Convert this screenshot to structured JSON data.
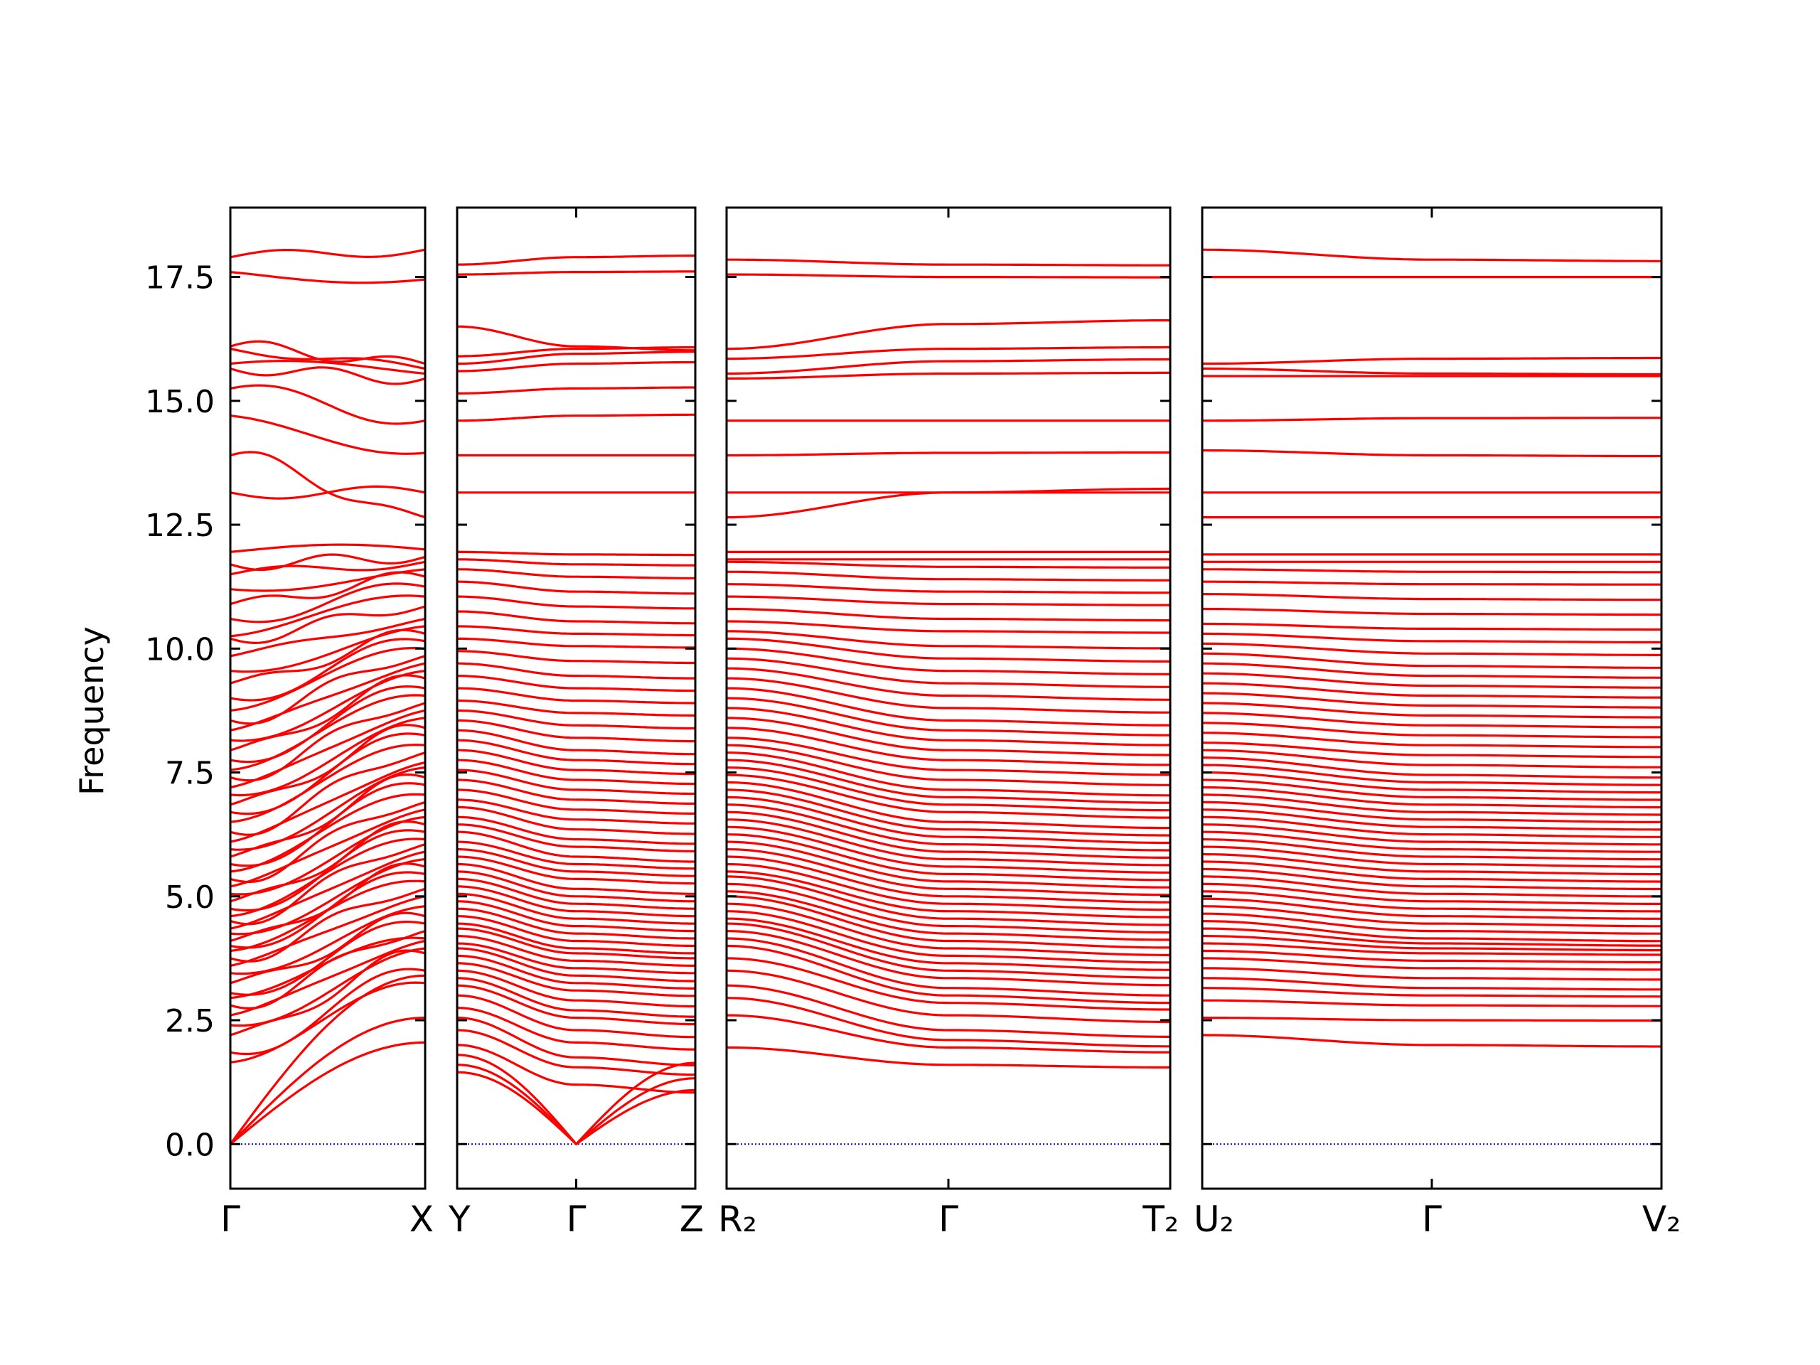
{
  "chart_data": {
    "type": "line",
    "ylabel": "Frequency",
    "ylim": [
      -0.9,
      18.9
    ],
    "yticks": [
      "0.0",
      "2.5",
      "5.0",
      "7.5",
      "10.0",
      "12.5",
      "15.0",
      "17.5"
    ],
    "ytick_values": [
      0,
      2.5,
      5,
      7.5,
      10,
      12.5,
      15,
      17.5
    ],
    "line_color": "#ff0000",
    "zero_line_color": "#0000cc",
    "panels": [
      {
        "labels": [
          "Γ",
          "X"
        ],
        "gamma_index": 0,
        "endpoints": [
          [
            0.0,
            2.05
          ],
          [
            0.0,
            2.55
          ],
          [
            0.0,
            3.4
          ],
          [
            1.65,
            3.25
          ],
          [
            1.85,
            3.5
          ],
          [
            2.2,
            3.85
          ],
          [
            2.4,
            3.95
          ],
          [
            2.6,
            4.1
          ],
          [
            2.8,
            4.3
          ],
          [
            2.95,
            4.15
          ],
          [
            3.05,
            4.45
          ],
          [
            3.25,
            4.6
          ],
          [
            3.45,
            4.8
          ],
          [
            3.6,
            5.0
          ],
          [
            3.75,
            5.15
          ],
          [
            3.9,
            5.3
          ],
          [
            4.0,
            5.45
          ],
          [
            4.1,
            5.6
          ],
          [
            4.25,
            5.75
          ],
          [
            4.35,
            5.9
          ],
          [
            4.5,
            6.05
          ],
          [
            4.6,
            6.15
          ],
          [
            4.75,
            6.3
          ],
          [
            4.9,
            6.45
          ],
          [
            5.05,
            6.6
          ],
          [
            5.2,
            6.75
          ],
          [
            5.35,
            6.9
          ],
          [
            5.5,
            7.05
          ],
          [
            5.65,
            7.25
          ],
          [
            5.8,
            7.4
          ],
          [
            5.95,
            7.6
          ],
          [
            6.1,
            7.7
          ],
          [
            6.3,
            7.9
          ],
          [
            6.5,
            8.05
          ],
          [
            6.7,
            8.25
          ],
          [
            6.85,
            8.4
          ],
          [
            7.05,
            8.6
          ],
          [
            7.2,
            8.75
          ],
          [
            7.4,
            8.9
          ],
          [
            7.55,
            9.05
          ],
          [
            7.75,
            9.2
          ],
          [
            7.95,
            9.4
          ],
          [
            8.15,
            9.55
          ],
          [
            8.35,
            9.7
          ],
          [
            8.55,
            9.85
          ],
          [
            8.75,
            10.0
          ],
          [
            9.0,
            10.15
          ],
          [
            9.3,
            10.3
          ],
          [
            9.55,
            10.45
          ],
          [
            9.85,
            10.6
          ],
          [
            10.2,
            10.85
          ],
          [
            10.25,
            11.05
          ],
          [
            10.6,
            11.25
          ],
          [
            10.9,
            11.45
          ],
          [
            11.2,
            11.6
          ],
          [
            11.5,
            11.75
          ],
          [
            11.7,
            11.85
          ],
          [
            11.95,
            12.0
          ],
          [
            13.15,
            13.15
          ],
          [
            13.9,
            12.65
          ],
          [
            14.7,
            13.95
          ],
          [
            15.25,
            14.6
          ],
          [
            15.65,
            15.45
          ],
          [
            15.75,
            15.55
          ],
          [
            16.05,
            15.65
          ],
          [
            16.1,
            15.75
          ],
          [
            17.6,
            17.45
          ],
          [
            17.9,
            18.05
          ]
        ]
      },
      {
        "labels": [
          "Y",
          "Γ",
          "Z"
        ],
        "gamma_index": 1,
        "endpoints": [
          [
            1.45,
            0.0
          ],
          [
            1.6,
            0.0
          ],
          [
            1.8,
            0.0
          ],
          [
            2.0,
            1.2
          ],
          [
            2.3,
            1.55
          ],
          [
            2.55,
            1.75
          ],
          [
            2.75,
            2.05
          ],
          [
            3.0,
            2.3
          ],
          [
            3.2,
            2.55
          ],
          [
            3.35,
            2.7
          ],
          [
            3.5,
            2.9
          ],
          [
            3.65,
            3.1
          ],
          [
            3.8,
            3.25
          ],
          [
            3.95,
            3.4
          ],
          [
            4.05,
            3.55
          ],
          [
            4.2,
            3.7
          ],
          [
            4.35,
            3.85
          ],
          [
            4.45,
            3.95
          ],
          [
            4.6,
            4.1
          ],
          [
            4.75,
            4.25
          ],
          [
            4.9,
            4.4
          ],
          [
            5.05,
            4.55
          ],
          [
            5.2,
            4.7
          ],
          [
            5.35,
            4.85
          ],
          [
            5.5,
            5.0
          ],
          [
            5.65,
            5.15
          ],
          [
            5.8,
            5.35
          ],
          [
            5.95,
            5.5
          ],
          [
            6.1,
            5.65
          ],
          [
            6.3,
            5.8
          ],
          [
            6.45,
            6.0
          ],
          [
            6.6,
            6.15
          ],
          [
            6.8,
            6.35
          ],
          [
            6.95,
            6.55
          ],
          [
            7.15,
            6.75
          ],
          [
            7.35,
            6.95
          ],
          [
            7.55,
            7.15
          ],
          [
            7.75,
            7.35
          ],
          [
            7.95,
            7.55
          ],
          [
            8.15,
            7.75
          ],
          [
            8.35,
            7.95
          ],
          [
            8.55,
            8.2
          ],
          [
            8.75,
            8.45
          ],
          [
            8.95,
            8.7
          ],
          [
            9.2,
            8.95
          ],
          [
            9.45,
            9.2
          ],
          [
            9.7,
            9.45
          ],
          [
            9.95,
            9.75
          ],
          [
            10.2,
            10.05
          ],
          [
            10.45,
            10.3
          ],
          [
            10.75,
            10.55
          ],
          [
            11.05,
            10.85
          ],
          [
            11.35,
            11.15
          ],
          [
            11.6,
            11.45
          ],
          [
            11.8,
            11.7
          ],
          [
            11.95,
            11.9
          ],
          [
            13.15,
            13.15
          ],
          [
            13.9,
            13.9
          ],
          [
            14.6,
            14.7
          ],
          [
            15.15,
            15.25
          ],
          [
            15.6,
            15.75
          ],
          [
            15.75,
            15.95
          ],
          [
            15.9,
            16.05
          ],
          [
            16.5,
            16.1
          ],
          [
            17.55,
            17.6
          ],
          [
            17.75,
            17.9
          ]
        ]
      },
      {
        "labels": [
          "R₂",
          "Γ",
          "T₂"
        ],
        "gamma_index": 1,
        "endpoints": [
          [
            1.95,
            1.6
          ],
          [
            2.6,
            1.95
          ],
          [
            2.95,
            2.1
          ],
          [
            3.2,
            2.3
          ],
          [
            3.5,
            2.6
          ],
          [
            3.75,
            2.85
          ],
          [
            4.0,
            3.0
          ],
          [
            4.15,
            3.15
          ],
          [
            4.3,
            3.35
          ],
          [
            4.45,
            3.5
          ],
          [
            4.55,
            3.65
          ],
          [
            4.7,
            3.8
          ],
          [
            4.85,
            3.95
          ],
          [
            5.0,
            4.1
          ],
          [
            5.1,
            4.25
          ],
          [
            5.25,
            4.4
          ],
          [
            5.4,
            4.55
          ],
          [
            5.5,
            4.7
          ],
          [
            5.65,
            4.85
          ],
          [
            5.8,
            5.0
          ],
          [
            5.95,
            5.15
          ],
          [
            6.1,
            5.3
          ],
          [
            6.25,
            5.45
          ],
          [
            6.4,
            5.6
          ],
          [
            6.55,
            5.75
          ],
          [
            6.7,
            5.9
          ],
          [
            6.85,
            6.05
          ],
          [
            7.0,
            6.2
          ],
          [
            7.15,
            6.35
          ],
          [
            7.3,
            6.5
          ],
          [
            7.45,
            6.7
          ],
          [
            7.6,
            6.85
          ],
          [
            7.75,
            7.0
          ],
          [
            7.9,
            7.15
          ],
          [
            8.05,
            7.35
          ],
          [
            8.2,
            7.55
          ],
          [
            8.4,
            7.75
          ],
          [
            8.6,
            7.95
          ],
          [
            8.8,
            8.15
          ],
          [
            9.0,
            8.35
          ],
          [
            9.2,
            8.55
          ],
          [
            9.4,
            8.8
          ],
          [
            9.6,
            9.05
          ],
          [
            9.8,
            9.3
          ],
          [
            10.0,
            9.55
          ],
          [
            10.2,
            9.8
          ],
          [
            10.35,
            10.05
          ],
          [
            10.55,
            10.35
          ],
          [
            10.8,
            10.6
          ],
          [
            11.05,
            10.9
          ],
          [
            11.3,
            11.15
          ],
          [
            11.55,
            11.4
          ],
          [
            11.75,
            11.65
          ],
          [
            11.8,
            11.8
          ],
          [
            11.95,
            11.95
          ],
          [
            12.65,
            13.15
          ],
          [
            13.15,
            13.15
          ],
          [
            13.9,
            13.95
          ],
          [
            14.6,
            14.6
          ],
          [
            15.45,
            15.55
          ],
          [
            15.55,
            15.8
          ],
          [
            15.85,
            16.05
          ],
          [
            16.05,
            16.55
          ],
          [
            17.55,
            17.5
          ],
          [
            17.85,
            17.75
          ]
        ]
      },
      {
        "labels": [
          "U₂",
          "Γ",
          "V₂"
        ],
        "gamma_index": 1,
        "endpoints": [
          [
            2.2,
            2.0
          ],
          [
            2.55,
            2.5
          ],
          [
            2.9,
            2.8
          ],
          [
            3.15,
            3.0
          ],
          [
            3.35,
            3.15
          ],
          [
            3.55,
            3.35
          ],
          [
            3.75,
            3.55
          ],
          [
            3.9,
            3.7
          ],
          [
            4.05,
            3.85
          ],
          [
            4.2,
            3.95
          ],
          [
            4.35,
            4.05
          ],
          [
            4.5,
            4.15
          ],
          [
            4.65,
            4.3
          ],
          [
            4.8,
            4.45
          ],
          [
            4.95,
            4.6
          ],
          [
            5.1,
            4.75
          ],
          [
            5.25,
            4.9
          ],
          [
            5.4,
            5.05
          ],
          [
            5.55,
            5.2
          ],
          [
            5.7,
            5.35
          ],
          [
            5.85,
            5.5
          ],
          [
            6.0,
            5.65
          ],
          [
            6.15,
            5.8
          ],
          [
            6.3,
            5.95
          ],
          [
            6.45,
            6.1
          ],
          [
            6.6,
            6.25
          ],
          [
            6.75,
            6.4
          ],
          [
            6.9,
            6.55
          ],
          [
            7.05,
            6.7
          ],
          [
            7.2,
            6.85
          ],
          [
            7.35,
            7.0
          ],
          [
            7.5,
            7.15
          ],
          [
            7.65,
            7.3
          ],
          [
            7.8,
            7.45
          ],
          [
            7.95,
            7.65
          ],
          [
            8.1,
            7.85
          ],
          [
            8.3,
            8.05
          ],
          [
            8.5,
            8.25
          ],
          [
            8.7,
            8.45
          ],
          [
            8.9,
            8.65
          ],
          [
            9.1,
            8.85
          ],
          [
            9.3,
            9.05
          ],
          [
            9.5,
            9.25
          ],
          [
            9.7,
            9.45
          ],
          [
            9.9,
            9.65
          ],
          [
            10.1,
            9.9
          ],
          [
            10.3,
            10.15
          ],
          [
            10.5,
            10.4
          ],
          [
            10.8,
            10.7
          ],
          [
            11.1,
            11.0
          ],
          [
            11.35,
            11.3
          ],
          [
            11.6,
            11.55
          ],
          [
            11.75,
            11.75
          ],
          [
            11.9,
            11.9
          ],
          [
            12.65,
            12.65
          ],
          [
            13.15,
            13.15
          ],
          [
            14.0,
            13.9
          ],
          [
            14.6,
            14.65
          ],
          [
            15.5,
            15.5
          ],
          [
            15.65,
            15.55
          ],
          [
            15.75,
            15.85
          ],
          [
            17.5,
            17.5
          ],
          [
            18.05,
            17.85
          ]
        ]
      }
    ]
  }
}
